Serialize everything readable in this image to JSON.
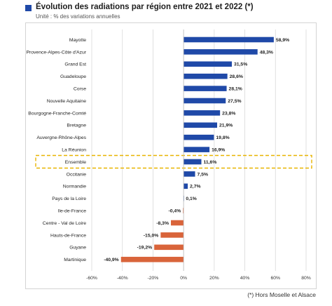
{
  "chart_data": {
    "type": "bar",
    "orientation": "horizontal",
    "title": "Évolution des radiations par région entre 2021 et 2022 (*)",
    "subtitle": "Unité : % des variations annuelles",
    "footnote": "(*) Hors Moselle et Alsace",
    "categories": [
      "Mayotte",
      "Provence-Alpes-Côte d'Azur",
      "Grand Est",
      "Guadeloupe",
      "Corse",
      "Nouvelle Aquitaine",
      "Bourgogne-Franche-Comté",
      "Bretagne",
      "Auvergne-Rhône-Alpes",
      "La Réunion",
      "Ensemble",
      "Occitanie",
      "Normandie",
      "Pays de la Loire",
      "Ile-de-France",
      "Centre - Val de Loire",
      "Hauts-de-France",
      "Guyane",
      "Martinique"
    ],
    "values": [
      58.9,
      48.3,
      31.5,
      28.6,
      28.1,
      27.5,
      23.8,
      21.9,
      19.8,
      16.9,
      11.6,
      7.5,
      2.7,
      0.1,
      -0.4,
      -8.3,
      -15.0,
      -19.2,
      -40.9
    ],
    "value_labels": [
      "58,9%",
      "48,3%",
      "31,5%",
      "28,6%",
      "28,1%",
      "27,5%",
      "23,8%",
      "21,9%",
      "19,8%",
      "16,9%",
      "11,6%",
      "7,5%",
      "2,7%",
      "0,1%",
      "-0,4%",
      "-8,3%",
      "-15,0%",
      "-19,2%",
      "-40,9%"
    ],
    "highlighted_category": "Ensemble",
    "xlim": [
      -60,
      80
    ],
    "xticks": [
      -60,
      -40,
      -20,
      0,
      20,
      40,
      60,
      80
    ],
    "xtick_labels": [
      "-60%",
      "-40%",
      "-20%",
      "0%",
      "20%",
      "40%",
      "60%",
      "80%"
    ],
    "grid": "vertical",
    "colors": {
      "positive": "#1f49a8",
      "negative": "#d9643a",
      "highlight_box": "#e8b400",
      "title_square": "#1f49a8"
    }
  }
}
